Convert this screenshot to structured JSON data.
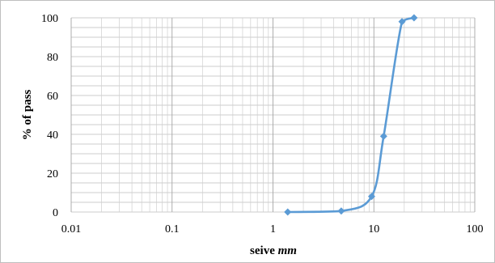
{
  "chart_data": {
    "type": "scatter",
    "x_scale": "log",
    "xlim": [
      0.01,
      100
    ],
    "ylim": [
      0,
      100
    ],
    "xticks": [
      "0.01",
      "0.1",
      "1",
      "10",
      "100"
    ],
    "yticks": [
      "0",
      "20",
      "40",
      "60",
      "80",
      "100"
    ],
    "xlabel": "seive",
    "xlabel_unit": "mm",
    "ylabel": "% of pass",
    "grid": true,
    "legend": "none",
    "series": [
      {
        "color": "#5b9bd5",
        "marker": "diamond",
        "smooth": true,
        "x": [
          1.4,
          4.75,
          9.5,
          12.5,
          19,
          25
        ],
        "y": [
          0,
          0.5,
          8,
          39,
          98,
          100
        ]
      }
    ]
  }
}
